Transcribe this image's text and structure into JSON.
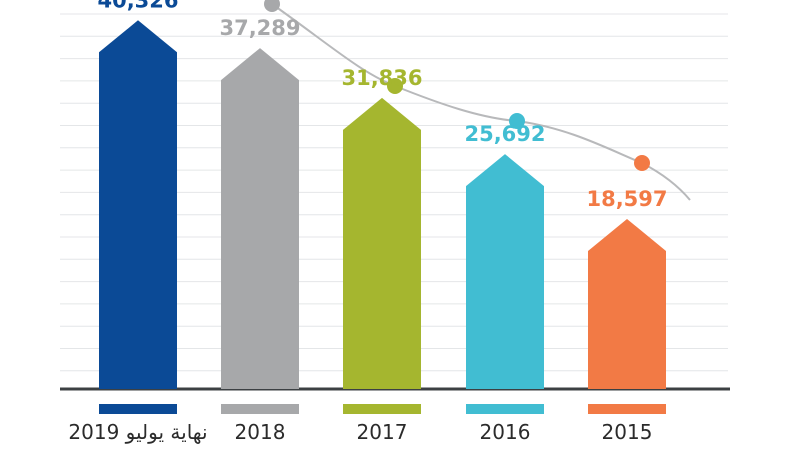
{
  "chart_data": {
    "type": "bar",
    "title": "",
    "xlabel": "",
    "ylabel": "",
    "categories": [
      "نهاية يوليو 2019",
      "2018",
      "2017",
      "2016",
      "2015"
    ],
    "values": [
      40326,
      37289,
      31836,
      25692,
      18597
    ],
    "value_labels": [
      "40,326",
      "37,289",
      "31,836",
      "25,692",
      "18,597"
    ],
    "colors": [
      "#0b4a96",
      "#a7a8aa",
      "#a5b62f",
      "#41bdd2",
      "#f27a45"
    ],
    "ylim": [
      0,
      42000
    ],
    "grid": true,
    "trend_line": true
  }
}
